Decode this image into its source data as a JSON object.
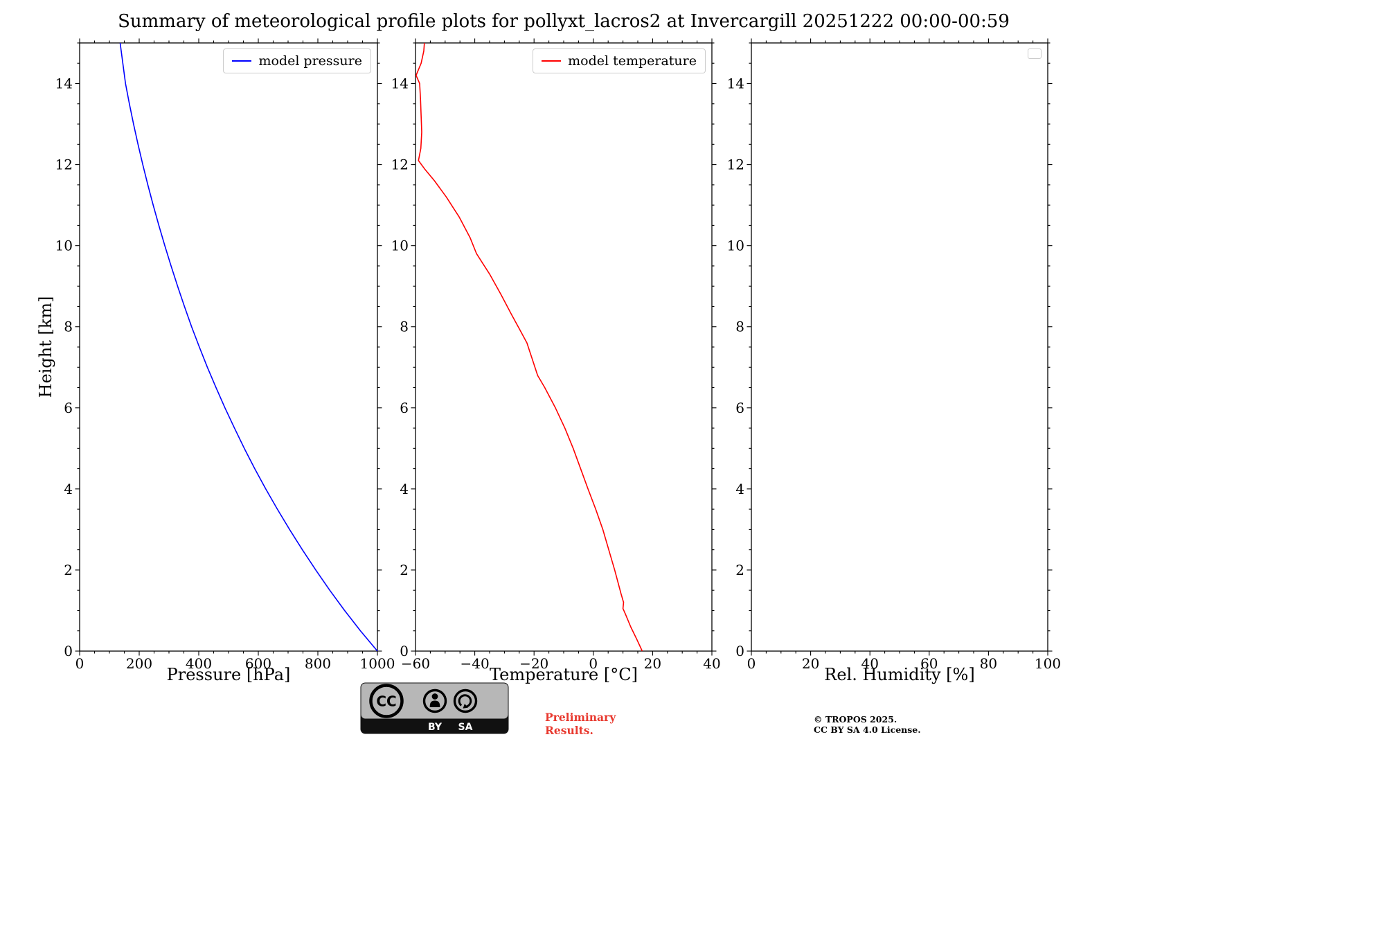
{
  "title": "Summary of meteorological profile plots for pollyxt_lacros2 at Invercargill 20251222 00:00-00:59",
  "colors": {
    "pressure_line": "#0000ff",
    "temperature_line": "#ff0000",
    "preliminary_text": "#e8392f"
  },
  "chart_data": [
    {
      "type": "line",
      "name": "pressure-profile",
      "xlabel": "Pressure [hPa]",
      "ylabel": "Height [km]",
      "xlim": [
        0,
        1000
      ],
      "ylim": [
        0,
        15
      ],
      "xtick_vals": [
        0,
        200,
        400,
        600,
        800,
        1000
      ],
      "xtick_labels": [
        "0",
        "200",
        "400",
        "600",
        "800",
        "1000"
      ],
      "ytick_vals": [
        0,
        2,
        4,
        6,
        8,
        10,
        12,
        14
      ],
      "ytick_labels": [
        "0",
        "2",
        "4",
        "6",
        "8",
        "10",
        "12",
        "14"
      ],
      "xminor": 50,
      "yminor": 0.5,
      "grid": false,
      "legend": "model pressure",
      "legend_position": "upper right",
      "series": [
        {
          "name": "model pressure",
          "color": "#0000ff",
          "x": [
            1000,
            943,
            890,
            840,
            793,
            748,
            705,
            664,
            625,
            588,
            553,
            520,
            488,
            458,
            429,
            402,
            376,
            352,
            329,
            307,
            286,
            266,
            247,
            229,
            212,
            196,
            181,
            167,
            154,
            145,
            136
          ],
          "y": [
            0,
            0.5,
            1,
            1.5,
            2,
            2.5,
            3,
            3.5,
            4,
            4.5,
            5,
            5.5,
            6,
            6.5,
            7,
            7.5,
            8,
            8.5,
            9,
            9.5,
            10,
            10.5,
            11,
            11.5,
            12,
            12.5,
            13,
            13.5,
            14,
            14.5,
            15
          ]
        }
      ]
    },
    {
      "type": "line",
      "name": "temperature-profile",
      "xlabel": "Temperature [°C]",
      "ylabel": "",
      "xlim": [
        -60,
        40
      ],
      "ylim": [
        0,
        15
      ],
      "xtick_vals": [
        -60,
        -40,
        -20,
        0,
        20,
        40
      ],
      "xtick_labels": [
        "−60",
        "−40",
        "−20",
        "0",
        "20",
        "40"
      ],
      "ytick_vals": [
        0,
        2,
        4,
        6,
        8,
        10,
        12,
        14
      ],
      "ytick_labels": [
        "0",
        "2",
        "4",
        "6",
        "8",
        "10",
        "12",
        "14"
      ],
      "xminor": 5,
      "yminor": 0.5,
      "grid": false,
      "legend": "model temperature",
      "legend_position": "upper right",
      "series": [
        {
          "name": "model temperature",
          "color": "#ff0000",
          "x": [
            16.5,
            14.6,
            12.6,
            10.9,
            10.0,
            10.2,
            9.4,
            8.3,
            7.2,
            5.2,
            3.2,
            0.8,
            -1.8,
            -3.8,
            -6.8,
            -9.6,
            -12.8,
            -16.4,
            -18.8,
            -20.6,
            -22.4,
            -24.6,
            -27.6,
            -31.2,
            -35.0,
            -39.4,
            -41.6,
            -45.2,
            -49.6,
            -53.6,
            -57.0,
            -59.0,
            -58.2,
            -57.9,
            -58.1,
            -58.3,
            -58.6,
            -59.8,
            -58.1,
            -57.2,
            -57.0
          ],
          "y": [
            0,
            0.3,
            0.6,
            0.9,
            1.05,
            1.2,
            1.4,
            1.7,
            2,
            2.5,
            3,
            3.5,
            4,
            4.4,
            5,
            5.5,
            6,
            6.5,
            6.8,
            7.2,
            7.6,
            7.9,
            8.3,
            8.8,
            9.3,
            9.8,
            10.2,
            10.7,
            11.2,
            11.6,
            11.9,
            12.1,
            12.4,
            12.8,
            13.2,
            13.6,
            14.0,
            14.2,
            14.5,
            14.8,
            15
          ]
        }
      ]
    },
    {
      "type": "line",
      "name": "relative-humidity-profile",
      "xlabel": "Rel. Humidity [%]",
      "ylabel": "",
      "xlim": [
        0,
        100
      ],
      "ylim": [
        0,
        15
      ],
      "xtick_vals": [
        0,
        20,
        40,
        60,
        80,
        100
      ],
      "xtick_labels": [
        "0",
        "20",
        "40",
        "60",
        "80",
        "100"
      ],
      "ytick_vals": [
        0,
        2,
        4,
        6,
        8,
        10,
        12,
        14
      ],
      "ytick_labels": [
        "0",
        "2",
        "4",
        "6",
        "8",
        "10",
        "12",
        "14"
      ],
      "xminor": 5,
      "yminor": 0.5,
      "grid": false,
      "legend": "",
      "legend_position": "upper right",
      "series": []
    }
  ],
  "footer": {
    "license_badge": {
      "cc": "CC",
      "by": "BY",
      "sa": "SA"
    },
    "preliminary_line1": "Preliminary",
    "preliminary_line2": "Results.",
    "copyright_line1": "© TROPOS 2025.",
    "copyright_line2": "CC BY SA 4.0 License."
  }
}
